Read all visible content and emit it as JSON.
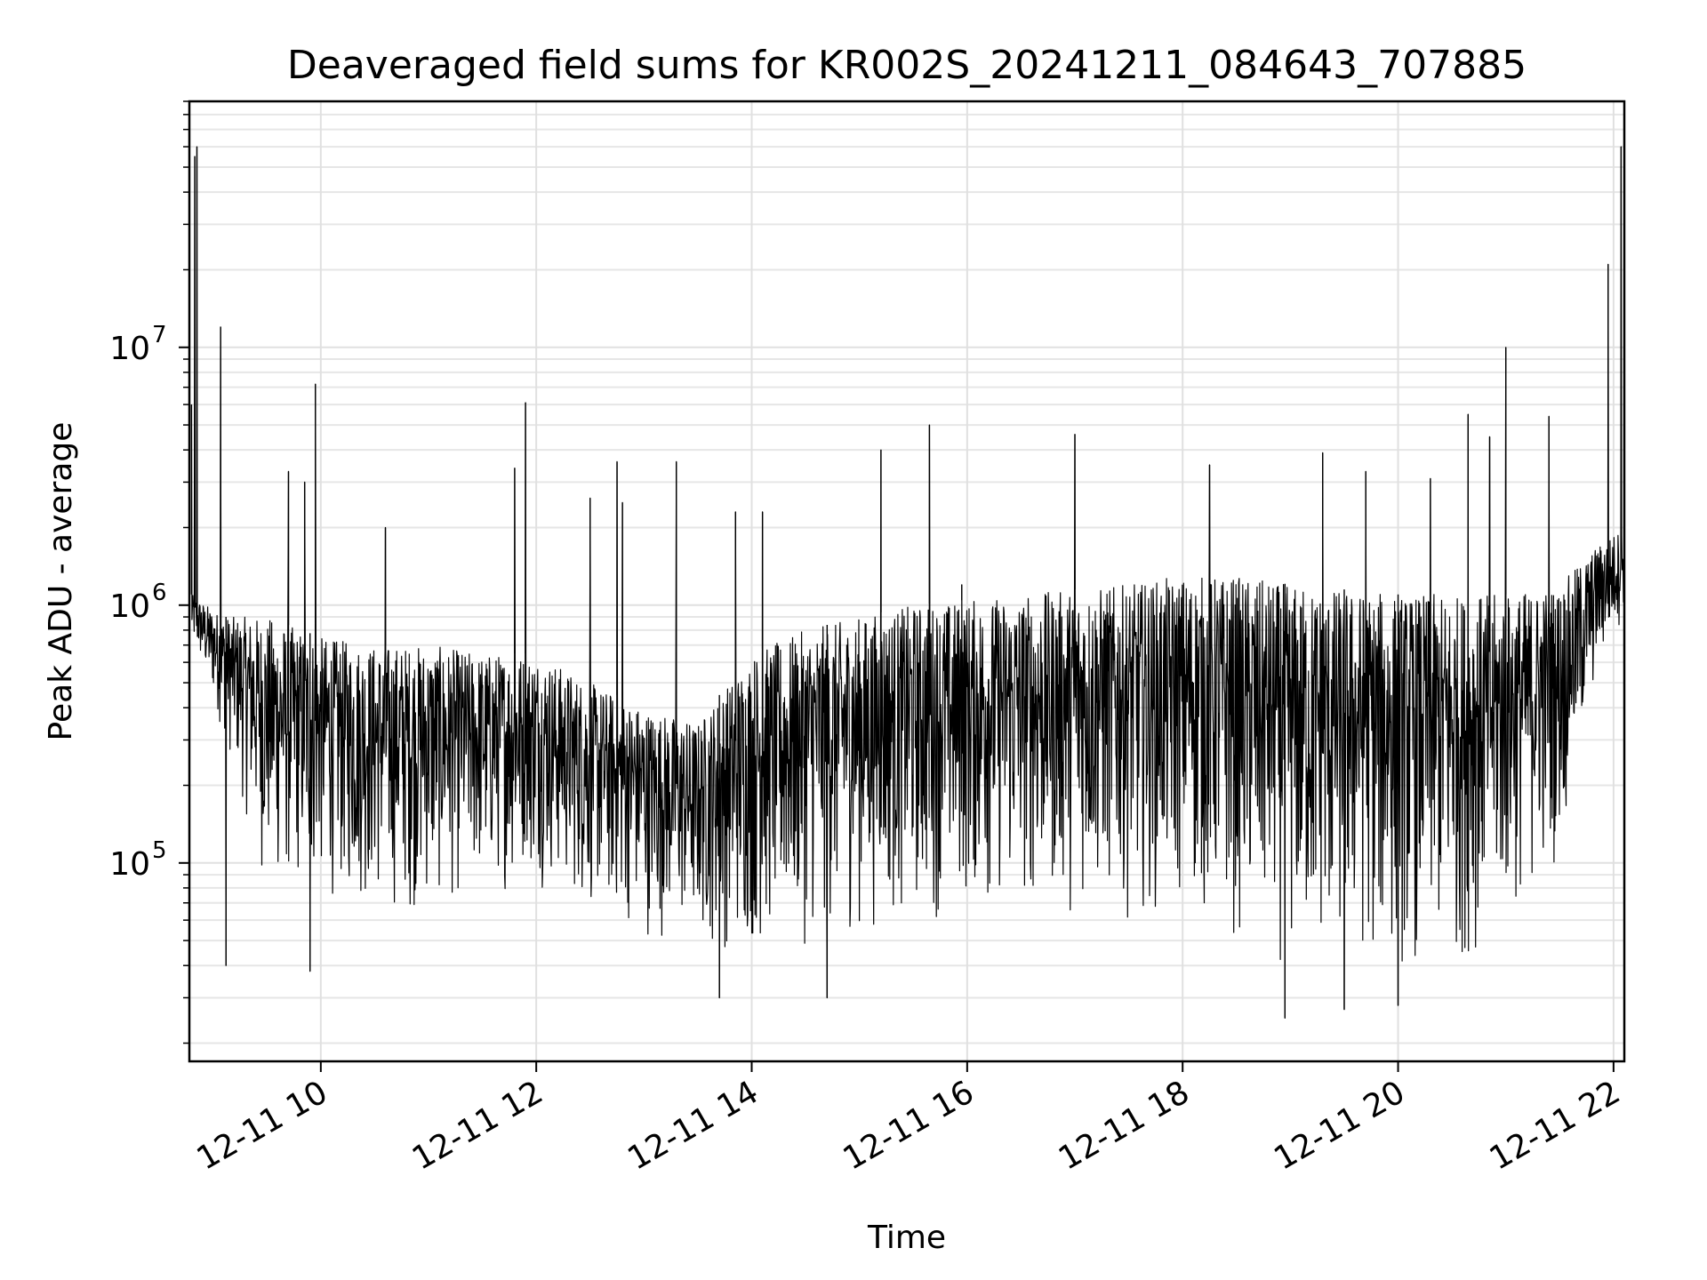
{
  "chart_data": {
    "type": "line",
    "title": "Deaveraged field sums for KR002S_20241211_084643_707885",
    "xlabel": "Time",
    "ylabel": "Peak ADU - average",
    "yscale": "log",
    "xlim_hours": [
      8.78,
      22.1
    ],
    "ylim": [
      17000,
      90000000
    ],
    "grid": true,
    "line_color": "#000000",
    "x_ticks": [
      {
        "hour": 10,
        "label": "12-11 10"
      },
      {
        "hour": 12,
        "label": "12-11 12"
      },
      {
        "hour": 14,
        "label": "12-11 14"
      },
      {
        "hour": 16,
        "label": "12-11 16"
      },
      {
        "hour": 18,
        "label": "12-11 18"
      },
      {
        "hour": 20,
        "label": "12-11 20"
      },
      {
        "hour": 22,
        "label": "12-11 22"
      }
    ],
    "y_ticks": [
      {
        "value": 100000,
        "base": "10",
        "exp": "5"
      },
      {
        "value": 1000000,
        "base": "10",
        "exp": "6"
      },
      {
        "value": 10000000,
        "base": "10",
        "exp": "7"
      }
    ],
    "envelope": {
      "hours": [
        8.8,
        9.1,
        9.5,
        10.0,
        10.5,
        11.0,
        11.5,
        12.0,
        12.5,
        13.0,
        13.5,
        14.0,
        14.5,
        15.0,
        15.5,
        16.0,
        16.5,
        17.0,
        17.5,
        18.0,
        18.5,
        19.0,
        19.5,
        20.0,
        20.5,
        21.0,
        21.5,
        21.85,
        22.1
      ],
      "upper": [
        1100000,
        900000,
        900000,
        750000,
        700000,
        700000,
        650000,
        650000,
        500000,
        400000,
        350000,
        650000,
        800000,
        900000,
        1000000,
        1050000,
        1100000,
        1150000,
        1200000,
        1300000,
        1300000,
        1200000,
        1150000,
        1100000,
        1100000,
        1100000,
        1200000,
        1700000,
        2000000
      ],
      "lower": [
        700000,
        300000,
        70000,
        70000,
        60000,
        60000,
        70000,
        80000,
        60000,
        50000,
        45000,
        40000,
        45000,
        50000,
        55000,
        60000,
        60000,
        60000,
        60000,
        60000,
        45000,
        35000,
        35000,
        35000,
        35000,
        50000,
        100000,
        500000,
        900000
      ]
    },
    "spikes": [
      {
        "hour": 8.8,
        "value": 6000000
      },
      {
        "hour": 8.83,
        "value": 55000000
      },
      {
        "hour": 8.85,
        "value": 60000000
      },
      {
        "hour": 9.07,
        "value": 12000000
      },
      {
        "hour": 9.12,
        "value": 40000
      },
      {
        "hour": 9.7,
        "value": 3300000
      },
      {
        "hour": 9.85,
        "value": 3000000
      },
      {
        "hour": 9.95,
        "value": 7200000
      },
      {
        "hour": 9.9,
        "value": 38000
      },
      {
        "hour": 10.6,
        "value": 2000000
      },
      {
        "hour": 11.8,
        "value": 3400000
      },
      {
        "hour": 11.9,
        "value": 6100000
      },
      {
        "hour": 12.5,
        "value": 2600000
      },
      {
        "hour": 12.75,
        "value": 3600000
      },
      {
        "hour": 12.8,
        "value": 2500000
      },
      {
        "hour": 13.3,
        "value": 3600000
      },
      {
        "hour": 13.7,
        "value": 30000
      },
      {
        "hour": 13.85,
        "value": 2300000
      },
      {
        "hour": 14.1,
        "value": 2300000
      },
      {
        "hour": 14.7,
        "value": 30000
      },
      {
        "hour": 15.2,
        "value": 4000000
      },
      {
        "hour": 15.65,
        "value": 5000000
      },
      {
        "hour": 15.95,
        "value": 1200000
      },
      {
        "hour": 17.0,
        "value": 4600000
      },
      {
        "hour": 18.25,
        "value": 3500000
      },
      {
        "hour": 18.95,
        "value": 25000
      },
      {
        "hour": 19.3,
        "value": 3900000
      },
      {
        "hour": 19.5,
        "value": 27000
      },
      {
        "hour": 19.7,
        "value": 3300000
      },
      {
        "hour": 20.0,
        "value": 28000
      },
      {
        "hour": 20.3,
        "value": 3100000
      },
      {
        "hour": 20.65,
        "value": 5500000
      },
      {
        "hour": 20.85,
        "value": 4500000
      },
      {
        "hour": 21.0,
        "value": 10000000
      },
      {
        "hour": 21.4,
        "value": 5400000
      },
      {
        "hour": 21.95,
        "value": 21000000
      },
      {
        "hour": 22.07,
        "value": 60000000
      }
    ]
  }
}
